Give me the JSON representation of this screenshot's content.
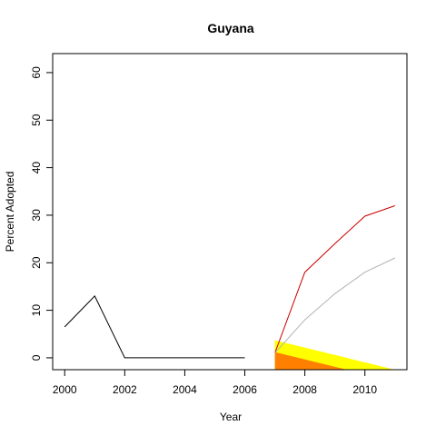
{
  "chart_data": {
    "type": "line",
    "title": "Guyana",
    "xlabel": "Year",
    "ylabel": "Percent Adopted",
    "xlim": [
      1999.6,
      2011.4
    ],
    "ylim": [
      -2.5,
      64
    ],
    "x_ticks": [
      2000,
      2002,
      2004,
      2006,
      2008,
      2010
    ],
    "y_ticks": [
      0,
      10,
      20,
      30,
      40,
      50,
      60
    ],
    "grid": false,
    "legend": "none",
    "series": [
      {
        "color": "#000000",
        "points": [
          [
            2000,
            6.5
          ],
          [
            2001,
            13
          ],
          [
            2002,
            0
          ],
          [
            2003,
            0
          ],
          [
            2004,
            0
          ],
          [
            2005,
            0
          ],
          [
            2006,
            0
          ]
        ]
      },
      {
        "color": "#cc0000",
        "points": [
          [
            2007,
            1
          ],
          [
            2008,
            18
          ],
          [
            2009,
            24
          ],
          [
            2010,
            29.8
          ],
          [
            2011,
            32
          ]
        ]
      },
      {
        "color": "#b3b3b3",
        "points": [
          [
            2007,
            1
          ],
          [
            2008,
            8
          ],
          [
            2009,
            13.5
          ],
          [
            2010,
            18
          ],
          [
            2011,
            21
          ]
        ]
      }
    ],
    "bands": [
      {
        "color": "#ffff00",
        "upper": [
          [
            2007,
            3.7
          ],
          [
            2011,
            -2.5
          ]
        ],
        "lower": [
          [
            2007,
            -2.5
          ],
          [
            2011,
            -2.5
          ]
        ]
      },
      {
        "color": "#ff8000",
        "upper": [
          [
            2007,
            1.2
          ],
          [
            2009.4,
            -2.5
          ]
        ],
        "lower": [
          [
            2007,
            -2.5
          ],
          [
            2009.4,
            -2.5
          ]
        ]
      }
    ]
  }
}
